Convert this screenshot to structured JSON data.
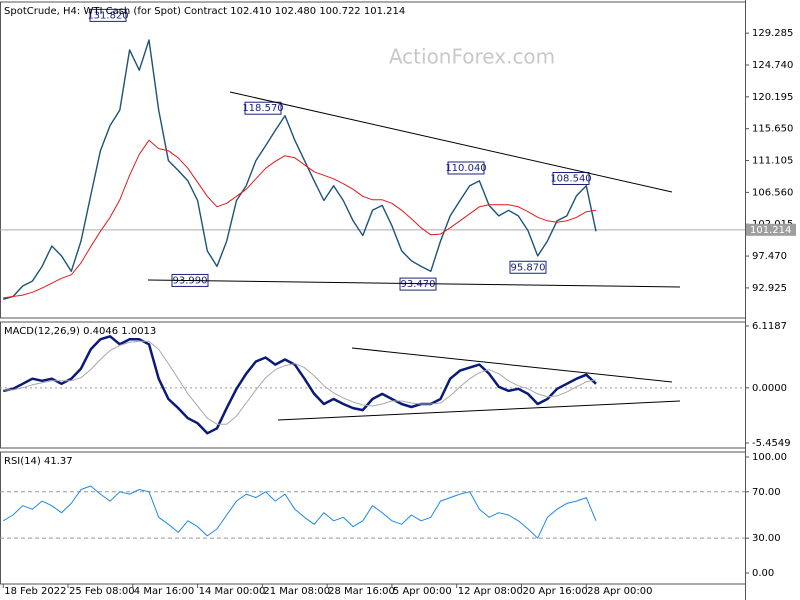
{
  "chart_data": [
    {
      "type": "line",
      "title": "SpotCrude, H4:  WTI Cash (for Spot) Contract  102.410 102.480 100.722 101.214",
      "watermark": "ActionForex.com",
      "x": [
        0,
        6,
        12,
        18,
        24,
        30,
        36,
        42,
        48,
        54,
        60,
        66,
        72,
        78,
        84,
        90,
        96,
        102,
        108,
        114,
        120,
        126,
        132,
        138,
        144,
        150,
        156,
        162,
        168,
        174,
        180,
        186,
        192,
        198,
        204,
        210,
        216,
        222,
        228,
        234,
        240,
        246,
        252,
        258,
        264,
        270,
        276,
        282,
        288,
        294,
        300,
        306,
        312,
        318,
        324,
        330,
        336,
        342,
        348,
        354,
        360,
        366
      ],
      "xlim": [
        -2,
        458
      ],
      "ylim": [
        88.63,
        133.73
      ],
      "yticks": [
        129.285,
        {
          "value": 124.74,
          "label": "124.740"
        },
        120.195,
        {
          "value": 115.65,
          "label": "115.650"
        },
        111.105,
        {
          "value": 106.56,
          "label": "106.560"
        },
        102.015,
        {
          "value": 97.47,
          "label": "97.470"
        },
        92.925
      ],
      "grid": false,
      "current_price": 101.214,
      "annotations": [
        {
          "value": 131.82,
          "label": "131.820"
        },
        {
          "value": 118.57,
          "label": "118.570"
        },
        {
          "value": 110.04,
          "label": "110.040"
        },
        {
          "value": 108.54,
          "label": "108.540"
        },
        {
          "value": 93.99,
          "label": "93.990"
        },
        {
          "value": 93.47,
          "label": "93.470"
        },
        {
          "value": 95.87,
          "label": "95.870"
        }
      ],
      "series": [
        {
          "color": "#1b5379",
          "values": [
            91.3,
            91.7,
            93.2,
            93.9,
            96.0,
            98.9,
            97.5,
            95.3,
            99.6,
            106.1,
            112.5,
            116.1,
            118.3,
            126.9,
            124.0,
            128.3,
            118.3,
            111.1,
            109.7,
            108.2,
            105.4,
            98.2,
            96.0,
            99.6,
            105.4,
            107.5,
            111.1,
            113.2,
            115.4,
            117.5,
            114.0,
            111.1,
            108.2,
            105.4,
            107.5,
            105.4,
            102.5,
            100.4,
            104.0,
            104.7,
            101.8,
            98.2,
            96.8,
            96.0,
            95.3,
            99.6,
            103.2,
            105.4,
            107.5,
            108.2,
            104.7,
            103.2,
            104.0,
            103.2,
            101.1,
            97.5,
            99.6,
            102.5,
            103.2,
            106.1,
            107.5,
            101.0
          ]
        },
        {
          "color": "#e31a1c",
          "values": [
            91.5,
            91.7,
            91.9,
            92.3,
            92.9,
            93.6,
            94.3,
            94.8,
            96.5,
            98.8,
            101.0,
            103.0,
            105.5,
            109.0,
            112.0,
            114.0,
            112.8,
            112.5,
            111.5,
            110.0,
            108.0,
            106.0,
            104.5,
            105.0,
            106.0,
            107.0,
            108.5,
            110.0,
            111.0,
            111.8,
            111.5,
            110.5,
            109.5,
            109.0,
            108.5,
            107.8,
            107.0,
            106.0,
            105.5,
            105.5,
            105.0,
            104.0,
            102.8,
            101.5,
            100.5,
            100.6,
            101.5,
            102.5,
            103.5,
            104.5,
            104.8,
            104.8,
            104.8,
            104.5,
            103.8,
            103.0,
            102.5,
            102.3,
            102.5,
            103.0,
            103.8,
            104.0
          ]
        }
      ]
    },
    {
      "type": "line",
      "title": "MACD(12,26,9) 0.4046 1.0013",
      "x": [
        0,
        6,
        12,
        18,
        24,
        30,
        36,
        42,
        48,
        54,
        60,
        66,
        72,
        78,
        84,
        90,
        96,
        102,
        108,
        114,
        120,
        126,
        132,
        138,
        144,
        150,
        156,
        162,
        168,
        174,
        180,
        186,
        192,
        198,
        204,
        210,
        216,
        222,
        228,
        234,
        240,
        246,
        252,
        258,
        264,
        270,
        276,
        282,
        288,
        294,
        300,
        306,
        312,
        318,
        324,
        330,
        336,
        342,
        348,
        354,
        360,
        366
      ],
      "xlim": [
        -2,
        458
      ],
      "ylim": [
        -5.95,
        6.51
      ],
      "yticks": [
        6.1187,
        {
          "value": 0,
          "label": "0.0000"
        },
        -5.4549
      ],
      "levels": [
        0
      ],
      "series": [
        {
          "color": "#0a1a7a",
          "values": [
            -0.3,
            -0.1,
            0.4,
            0.9,
            0.7,
            0.9,
            0.4,
            0.9,
            1.9,
            3.8,
            4.8,
            5.1,
            4.3,
            4.8,
            4.8,
            4.3,
            0.9,
            -1.1,
            -2.0,
            -3.0,
            -3.5,
            -4.5,
            -4.0,
            -2.0,
            -0.1,
            1.4,
            2.6,
            3.0,
            2.3,
            2.8,
            2.3,
            0.9,
            -0.6,
            -1.6,
            -1.1,
            -1.6,
            -2.0,
            -2.2,
            -1.1,
            -0.6,
            -1.1,
            -1.6,
            -1.9,
            -1.6,
            -1.6,
            -1.1,
            0.9,
            1.7,
            2.0,
            2.3,
            1.4,
            0.1,
            -0.3,
            -0.1,
            -0.6,
            -1.6,
            -1.1,
            -0.1,
            0.4,
            0.9,
            1.3,
            0.4
          ]
        },
        {
          "color": "#a8a8a8",
          "values": [
            -0.2,
            -0.2,
            0.0,
            0.3,
            0.5,
            0.7,
            0.7,
            0.7,
            1.0,
            1.8,
            2.8,
            3.7,
            4.2,
            4.5,
            4.6,
            4.6,
            3.8,
            2.4,
            0.9,
            -0.6,
            -1.8,
            -3.0,
            -3.6,
            -3.6,
            -2.8,
            -1.5,
            -0.2,
            1.0,
            1.8,
            2.2,
            2.4,
            2.0,
            1.2,
            0.2,
            -0.5,
            -1.0,
            -1.4,
            -1.7,
            -1.8,
            -1.6,
            -1.3,
            -1.3,
            -1.5,
            -1.6,
            -1.6,
            -1.5,
            -0.8,
            0.1,
            0.9,
            1.5,
            1.8,
            1.4,
            0.7,
            0.2,
            -0.1,
            -0.6,
            -0.9,
            -0.8,
            -0.4,
            0.1,
            0.6,
            0.8
          ]
        }
      ]
    },
    {
      "type": "line",
      "title": "RSI(14) 41.37",
      "x": [
        0,
        6,
        12,
        18,
        24,
        30,
        36,
        42,
        48,
        54,
        60,
        66,
        72,
        78,
        84,
        90,
        96,
        102,
        108,
        114,
        120,
        126,
        132,
        138,
        144,
        150,
        156,
        162,
        168,
        174,
        180,
        186,
        192,
        198,
        204,
        210,
        216,
        222,
        228,
        234,
        240,
        246,
        252,
        258,
        264,
        270,
        276,
        282,
        288,
        294,
        300,
        306,
        312,
        318,
        324,
        330,
        336,
        342,
        348,
        354,
        360,
        366
      ],
      "xlim": [
        -2,
        458
      ],
      "ylim": [
        -9.5,
        104.3
      ],
      "yticks": [
        {
          "value": 100,
          "label": "100.00"
        },
        {
          "value": 70,
          "label": "70.00"
        },
        {
          "value": 30,
          "label": "30.00"
        },
        {
          "value": 0,
          "label": "0.00"
        }
      ],
      "levels": [
        70,
        30
      ],
      "xticks": [
        {
          "value": 0,
          "label": "18 Feb 2022"
        },
        {
          "value": 40,
          "label": "25 Feb 08:00"
        },
        {
          "value": 80,
          "label": "4 Mar 16:00"
        },
        {
          "value": 120,
          "label": "14 Mar 00:00"
        },
        {
          "value": 160,
          "label": "21 Mar 08:00"
        },
        {
          "value": 200,
          "label": "28 Mar 16:00"
        },
        {
          "value": 240,
          "label": "5 Apr 00:00"
        },
        {
          "value": 280,
          "label": "12 Apr 08:00"
        },
        {
          "value": 320,
          "label": "20 Apr 16:00"
        },
        {
          "value": 360,
          "label": "28 Apr 00:00"
        }
      ],
      "series": [
        {
          "color": "#1e88e5",
          "values": [
            45,
            50,
            58,
            55,
            62,
            58,
            52,
            60,
            72,
            75,
            68,
            62,
            70,
            68,
            72,
            70,
            48,
            42,
            35,
            45,
            40,
            32,
            38,
            50,
            62,
            68,
            65,
            70,
            62,
            68,
            55,
            48,
            42,
            52,
            45,
            48,
            40,
            45,
            58,
            52,
            45,
            42,
            50,
            45,
            48,
            62,
            65,
            68,
            70,
            55,
            48,
            52,
            50,
            45,
            38,
            30,
            48,
            55,
            60,
            62,
            65,
            45
          ]
        }
      ]
    }
  ]
}
